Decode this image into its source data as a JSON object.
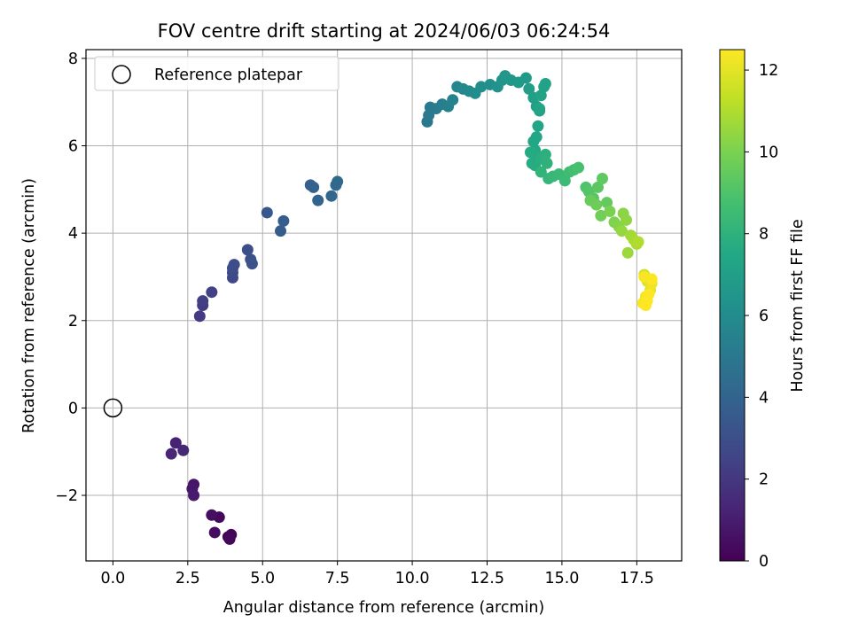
{
  "chart_data": {
    "type": "scatter",
    "title": "FOV centre drift starting at 2024/06/03 06:24:54",
    "xlabel": "Angular distance from reference (arcmin)",
    "ylabel": "Rotation from reference (arcmin)",
    "xlim": [
      -0.9,
      19.0
    ],
    "ylim": [
      -3.5,
      8.2
    ],
    "xticks": [
      0.0,
      2.5,
      5.0,
      7.5,
      10.0,
      12.5,
      15.0,
      17.5
    ],
    "xtick_labels": [
      "0.0",
      "2.5",
      "5.0",
      "7.5",
      "10.0",
      "12.5",
      "15.0",
      "17.5"
    ],
    "yticks": [
      -2,
      0,
      2,
      4,
      6,
      8
    ],
    "ytick_labels": [
      "−2",
      "0",
      "2",
      "4",
      "6",
      "8"
    ],
    "grid": true,
    "legend": {
      "location": "top-left",
      "entries": [
        "Reference platepar"
      ]
    },
    "reference_point": {
      "x": 0.0,
      "y": 0.0
    },
    "colorbar": {
      "label": "Hours from first FF file",
      "colormap": "viridis",
      "range": [
        0,
        12.5
      ],
      "ticks": [
        0,
        2,
        4,
        6,
        8,
        10,
        12
      ],
      "tick_labels": [
        "0",
        "2",
        "4",
        "6",
        "8",
        "10",
        "12"
      ]
    },
    "series": [
      {
        "x": [
          3.85,
          3.95,
          3.9,
          3.55,
          3.4,
          3.3,
          2.7,
          2.65,
          2.7,
          2.1,
          1.95,
          2.35,
          2.9,
          3.0,
          3.0,
          3.3,
          4.0,
          4.0,
          4.0,
          4.05,
          4.5,
          4.6,
          4.65,
          5.15,
          5.6,
          5.7,
          6.6,
          6.7,
          6.85,
          7.3,
          7.45,
          7.5,
          10.5,
          10.55,
          10.6,
          10.8,
          11.0,
          11.2,
          11.35,
          11.5,
          11.7,
          11.9,
          12.1,
          12.3,
          12.6,
          12.85,
          13.0,
          13.1,
          13.3,
          13.55,
          13.8,
          13.9,
          14.05,
          14.15,
          14.25,
          14.4,
          14.45,
          14.3,
          14.25,
          14.2,
          14.15,
          14.05,
          14.1,
          14.2,
          13.95,
          14.0,
          14.1,
          14.3,
          14.45,
          14.5,
          14.3,
          14.55,
          14.7,
          14.9,
          15.1,
          15.25,
          15.4,
          15.55,
          15.8,
          15.9,
          16.05,
          16.2,
          16.35,
          16.5,
          15.95,
          16.15,
          16.3,
          16.6,
          16.75,
          16.9,
          17.05,
          17.15,
          17.0,
          17.3,
          17.4,
          17.5,
          17.55,
          17.2,
          17.75,
          17.85,
          17.95,
          18.0,
          17.8,
          17.7,
          17.85,
          17.9,
          18.0,
          17.75,
          17.8
        ],
        "y": [
          -2.95,
          -2.9,
          -3.0,
          -2.5,
          -2.85,
          -2.45,
          -1.75,
          -1.85,
          -2.0,
          -0.8,
          -1.05,
          -0.97,
          2.1,
          2.35,
          2.45,
          2.65,
          2.98,
          3.1,
          3.2,
          3.28,
          3.62,
          3.4,
          3.3,
          4.47,
          4.05,
          4.28,
          5.1,
          5.05,
          4.75,
          4.85,
          5.1,
          5.18,
          6.55,
          6.7,
          6.88,
          6.85,
          6.95,
          6.9,
          7.05,
          7.35,
          7.3,
          7.25,
          7.2,
          7.35,
          7.4,
          7.35,
          7.5,
          7.6,
          7.5,
          7.45,
          7.55,
          7.3,
          7.1,
          6.9,
          6.8,
          7.35,
          7.42,
          7.15,
          6.85,
          6.45,
          6.2,
          6.1,
          5.9,
          5.75,
          5.85,
          5.6,
          5.55,
          5.7,
          5.8,
          5.6,
          5.4,
          5.25,
          5.3,
          5.35,
          5.2,
          5.4,
          5.45,
          5.5,
          5.05,
          4.95,
          4.8,
          5.05,
          5.25,
          4.7,
          4.75,
          4.65,
          4.4,
          4.5,
          4.25,
          4.15,
          4.45,
          4.3,
          4.05,
          3.95,
          3.85,
          3.75,
          3.8,
          3.55,
          3.05,
          2.9,
          2.7,
          2.85,
          2.55,
          2.4,
          2.45,
          2.6,
          2.95,
          3.0,
          2.35
        ],
        "hours": [
          0.0,
          0.1,
          0.2,
          0.3,
          0.4,
          0.5,
          0.7,
          0.8,
          0.9,
          1.2,
          1.3,
          1.4,
          2.1,
          2.2,
          2.3,
          2.4,
          2.7,
          2.8,
          2.85,
          2.9,
          3.0,
          3.1,
          3.15,
          3.4,
          3.6,
          3.65,
          3.9,
          3.95,
          4.0,
          4.1,
          4.2,
          4.25,
          5.0,
          5.05,
          5.1,
          5.2,
          5.3,
          5.45,
          5.55,
          5.7,
          5.8,
          5.9,
          6.0,
          6.1,
          6.2,
          6.3,
          6.4,
          6.5,
          6.6,
          6.7,
          6.8,
          6.9,
          7.0,
          7.05,
          7.1,
          7.15,
          7.2,
          7.25,
          7.3,
          7.35,
          7.4,
          7.45,
          7.5,
          7.55,
          7.6,
          7.65,
          7.7,
          7.8,
          7.9,
          8.0,
          8.1,
          8.2,
          8.3,
          8.4,
          8.5,
          8.6,
          8.7,
          8.8,
          9.0,
          9.1,
          9.2,
          9.3,
          9.4,
          9.5,
          9.6,
          9.7,
          9.8,
          10.0,
          10.1,
          10.2,
          10.3,
          10.4,
          10.5,
          10.7,
          10.8,
          10.9,
          11.0,
          10.6,
          11.6,
          11.8,
          12.0,
          12.2,
          12.3,
          12.4,
          12.5,
          12.5,
          12.5,
          12.4,
          12.5
        ]
      }
    ]
  }
}
